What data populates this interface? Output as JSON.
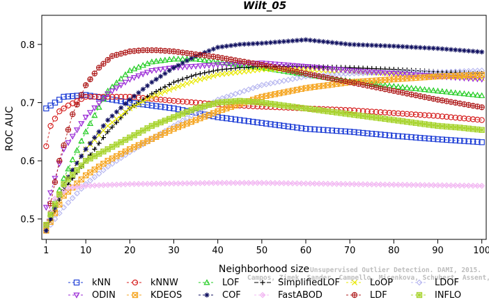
{
  "chart_data": {
    "type": "line",
    "title": "Wilt_05",
    "xlabel": "Neighborhood size",
    "ylabel": "ROC AUC",
    "xlim": [
      0,
      101
    ],
    "ylim": [
      0.465,
      0.85
    ],
    "xticks": [
      1,
      10,
      20,
      30,
      40,
      50,
      60,
      70,
      80,
      90,
      100
    ],
    "yticks": [
      0.5,
      0.6,
      0.7,
      0.8
    ],
    "grid": false,
    "legend_position": "bottom",
    "watermark": [
      "Unsupervised Outlier Detection. DAMI, 2015.",
      "Campos, Zimek, Sander, Campello, Micenkova, Schubert, Assent, Houle"
    ],
    "series": [
      {
        "name": "kNN",
        "color": "#1f3fd6",
        "marker": "square",
        "dash": "3,3",
        "x": [
          1,
          5,
          10,
          20,
          30,
          40,
          50,
          60,
          70,
          80,
          90,
          100
        ],
        "y": [
          0.69,
          0.71,
          0.713,
          0.7,
          0.69,
          0.675,
          0.665,
          0.655,
          0.65,
          0.643,
          0.637,
          0.632
        ]
      },
      {
        "name": "kNNW",
        "color": "#d62020",
        "marker": "circle",
        "dash": "3,3",
        "x": [
          1,
          2,
          4,
          6,
          10,
          20,
          30,
          40,
          50,
          60,
          70,
          80,
          90,
          100
        ],
        "y": [
          0.625,
          0.66,
          0.685,
          0.695,
          0.71,
          0.71,
          0.703,
          0.697,
          0.693,
          0.69,
          0.687,
          0.682,
          0.677,
          0.67
        ]
      },
      {
        "name": "LOF",
        "color": "#22cc22",
        "marker": "triangle-up",
        "dash": "3,3",
        "x": [
          1,
          5,
          10,
          15,
          20,
          25,
          30,
          35,
          40,
          50,
          60,
          70,
          80,
          90,
          100
        ],
        "y": [
          0.49,
          0.57,
          0.65,
          0.72,
          0.755,
          0.77,
          0.775,
          0.775,
          0.77,
          0.76,
          0.748,
          0.737,
          0.728,
          0.72,
          0.712
        ]
      },
      {
        "name": "SimplifiedLOF",
        "color": "#000000",
        "marker": "plus",
        "dash": "6,3",
        "x": [
          1,
          5,
          10,
          15,
          20,
          25,
          30,
          35,
          40,
          45,
          50,
          60,
          70,
          80,
          90,
          100
        ],
        "y": [
          0.48,
          0.55,
          0.6,
          0.65,
          0.69,
          0.715,
          0.735,
          0.748,
          0.756,
          0.76,
          0.762,
          0.762,
          0.76,
          0.757,
          0.753,
          0.75
        ]
      },
      {
        "name": "LoOP",
        "color": "#e8e800",
        "marker": "x",
        "dash": "3,3",
        "x": [
          1,
          5,
          10,
          15,
          20,
          25,
          30,
          35,
          40,
          50,
          60,
          70,
          80,
          90,
          100
        ],
        "y": [
          0.48,
          0.56,
          0.62,
          0.66,
          0.69,
          0.71,
          0.725,
          0.738,
          0.748,
          0.757,
          0.757,
          0.753,
          0.75,
          0.746,
          0.742
        ]
      },
      {
        "name": "LDOF",
        "color": "#b8b8f0",
        "marker": "diamond",
        "dash": "3,3",
        "x": [
          1,
          5,
          10,
          15,
          20,
          30,
          40,
          50,
          60,
          70,
          80,
          90,
          100
        ],
        "y": [
          0.48,
          0.52,
          0.56,
          0.59,
          0.615,
          0.66,
          0.705,
          0.73,
          0.745,
          0.75,
          0.752,
          0.752,
          0.755
        ]
      },
      {
        "name": "ODIN",
        "color": "#9a2ad6",
        "marker": "triangle-down",
        "dash": "3,3",
        "x": [
          1,
          5,
          10,
          15,
          20,
          25,
          30,
          40,
          50,
          60,
          70,
          80,
          90,
          100
        ],
        "y": [
          0.52,
          0.62,
          0.675,
          0.715,
          0.74,
          0.755,
          0.76,
          0.765,
          0.768,
          0.762,
          0.755,
          0.75,
          0.745,
          0.74
        ]
      },
      {
        "name": "KDEOS",
        "color": "#f5a623",
        "marker": "square-x",
        "dash": "3,3",
        "x": [
          1,
          5,
          10,
          15,
          20,
          30,
          40,
          50,
          60,
          70,
          80,
          90,
          100
        ],
        "y": [
          0.48,
          0.54,
          0.575,
          0.6,
          0.62,
          0.655,
          0.685,
          0.71,
          0.725,
          0.735,
          0.74,
          0.745,
          0.748
        ]
      },
      {
        "name": "COF",
        "color": "#101060",
        "marker": "asterisk",
        "dash": "3,3",
        "x": [
          1,
          5,
          10,
          15,
          20,
          25,
          30,
          35,
          40,
          45,
          50,
          55,
          60,
          70,
          80,
          90,
          100
        ],
        "y": [
          0.48,
          0.56,
          0.62,
          0.67,
          0.705,
          0.735,
          0.76,
          0.78,
          0.795,
          0.8,
          0.802,
          0.805,
          0.808,
          0.8,
          0.797,
          0.793,
          0.787
        ]
      },
      {
        "name": "FastABOD",
        "color": "#f2b8f2",
        "marker": "diamond-x",
        "dash": "3,3",
        "x": [
          1,
          3,
          6,
          10,
          20,
          30,
          40,
          50,
          60,
          70,
          80,
          90,
          100
        ],
        "y": [
          0.49,
          0.535,
          0.553,
          0.557,
          0.56,
          0.561,
          0.562,
          0.562,
          0.561,
          0.56,
          0.559,
          0.558,
          0.557
        ]
      },
      {
        "name": "LDF",
        "color": "#b02020",
        "marker": "circle-plus",
        "dash": "3,3",
        "x": [
          1,
          4,
          7,
          10,
          13,
          16,
          20,
          23,
          26,
          30,
          35,
          40,
          50,
          60,
          70,
          80,
          90,
          100
        ],
        "y": [
          0.49,
          0.6,
          0.68,
          0.73,
          0.76,
          0.78,
          0.788,
          0.79,
          0.79,
          0.788,
          0.783,
          0.778,
          0.765,
          0.75,
          0.735,
          0.72,
          0.705,
          0.692
        ]
      },
      {
        "name": "INFLO",
        "color": "#a8d430",
        "marker": "square-star",
        "dash": "3,3",
        "x": [
          1,
          5,
          10,
          15,
          20,
          25,
          30,
          35,
          40,
          45,
          50,
          55,
          60,
          65,
          70,
          75,
          80,
          85,
          90,
          95,
          100
        ],
        "y": [
          0.49,
          0.56,
          0.6,
          0.62,
          0.64,
          0.66,
          0.675,
          0.69,
          0.7,
          0.703,
          0.7,
          0.695,
          0.69,
          0.685,
          0.68,
          0.675,
          0.67,
          0.665,
          0.66,
          0.657,
          0.653
        ]
      }
    ]
  }
}
